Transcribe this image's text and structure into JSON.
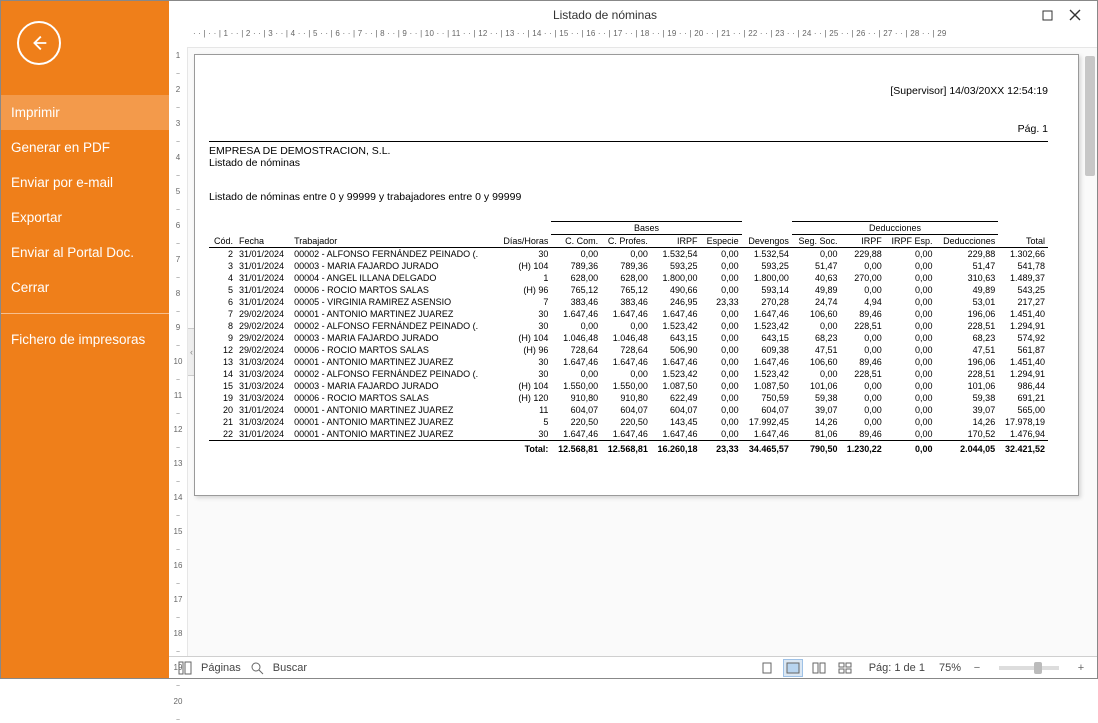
{
  "colors": {
    "accent": "#ef7f1a",
    "accent_light": "#f39a4b"
  },
  "window": {
    "title": "Listado de nóminas"
  },
  "sidebar": {
    "items": [
      {
        "label": "Imprimir",
        "active": true
      },
      {
        "label": "Generar en PDF"
      },
      {
        "label": "Enviar por e-mail"
      },
      {
        "label": "Exportar"
      },
      {
        "label": "Enviar al Portal Doc."
      },
      {
        "label": "Cerrar"
      },
      {
        "sep": true
      },
      {
        "label": "Fichero de impresoras"
      }
    ]
  },
  "ruler_h": [
    "1",
    "2",
    "3",
    "4",
    "5",
    "6",
    "7",
    "8",
    "9",
    "10",
    "11",
    "12",
    "13",
    "14",
    "15",
    "16",
    "17",
    "18",
    "19",
    "20",
    "21",
    "22",
    "23",
    "24",
    "25",
    "26",
    "27",
    "28",
    "29"
  ],
  "ruler_v": [
    "1",
    "2",
    "3",
    "4",
    "5",
    "6",
    "7",
    "8",
    "9",
    "10",
    "11",
    "12",
    "13",
    "14",
    "15",
    "16",
    "17",
    "18",
    "19",
    "20"
  ],
  "report": {
    "meta": "[Supervisor] 14/03/20XX 12:54:19",
    "company": "EMPRESA DE DEMOSTRACION, S.L.",
    "subtitle": "Listado de nóminas",
    "filter_line": "Listado de nóminas entre 0 y 99999 y trabajadores entre 0 y 99999",
    "page_label": "Pág. 1",
    "group_labels": {
      "bases": "Bases",
      "deducciones": "Deducciones"
    },
    "columns": [
      "Cód.",
      "Fecha",
      "Trabajador",
      "Días/Horas",
      "C. Com.",
      "C. Profes.",
      "IRPF",
      "Especie",
      "Devengos",
      "Seg. Soc.",
      "IRPF",
      "IRPF Esp.",
      "Deducciones",
      "Total"
    ],
    "rows": [
      [
        "2",
        "31/01/2024",
        "00002 - ALFONSO FERNÁNDEZ PEINADO (.",
        "30",
        "0,00",
        "0,00",
        "1.532,54",
        "0,00",
        "1.532,54",
        "0,00",
        "229,88",
        "0,00",
        "229,88",
        "1.302,66"
      ],
      [
        "3",
        "31/01/2024",
        "00003 - MARIA FAJARDO JURADO",
        "(H) 104",
        "789,36",
        "789,36",
        "593,25",
        "0,00",
        "593,25",
        "51,47",
        "0,00",
        "0,00",
        "51,47",
        "541,78"
      ],
      [
        "4",
        "31/01/2024",
        "00004 - ANGEL ILLANA DELGADO",
        "1",
        "628,00",
        "628,00",
        "1.800,00",
        "0,00",
        "1.800,00",
        "40,63",
        "270,00",
        "0,00",
        "310,63",
        "1.489,37"
      ],
      [
        "5",
        "31/01/2024",
        "00006 - ROCIO MARTOS SALAS",
        "(H) 96",
        "765,12",
        "765,12",
        "490,66",
        "0,00",
        "593,14",
        "49,89",
        "0,00",
        "0,00",
        "49,89",
        "543,25"
      ],
      [
        "6",
        "31/01/2024",
        "00005 - VIRGINIA RAMIREZ ASENSIO",
        "7",
        "383,46",
        "383,46",
        "246,95",
        "23,33",
        "270,28",
        "24,74",
        "4,94",
        "0,00",
        "53,01",
        "217,27"
      ],
      [
        "7",
        "29/02/2024",
        "00001 - ANTONIO MARTINEZ JUAREZ",
        "30",
        "1.647,46",
        "1.647,46",
        "1.647,46",
        "0,00",
        "1.647,46",
        "106,60",
        "89,46",
        "0,00",
        "196,06",
        "1.451,40"
      ],
      [
        "8",
        "29/02/2024",
        "00002 - ALFONSO FERNÁNDEZ PEINADO (.",
        "30",
        "0,00",
        "0,00",
        "1.523,42",
        "0,00",
        "1.523,42",
        "0,00",
        "228,51",
        "0,00",
        "228,51",
        "1.294,91"
      ],
      [
        "9",
        "29/02/2024",
        "00003 - MARIA FAJARDO JURADO",
        "(H) 104",
        "1.046,48",
        "1.046,48",
        "643,15",
        "0,00",
        "643,15",
        "68,23",
        "0,00",
        "0,00",
        "68,23",
        "574,92"
      ],
      [
        "12",
        "29/02/2024",
        "00006 - ROCIO MARTOS SALAS",
        "(H) 96",
        "728,64",
        "728,64",
        "506,90",
        "0,00",
        "609,38",
        "47,51",
        "0,00",
        "0,00",
        "47,51",
        "561,87"
      ],
      [
        "13",
        "31/03/2024",
        "00001 - ANTONIO MARTINEZ JUAREZ",
        "30",
        "1.647,46",
        "1.647,46",
        "1.647,46",
        "0,00",
        "1.647,46",
        "106,60",
        "89,46",
        "0,00",
        "196,06",
        "1.451,40"
      ],
      [
        "14",
        "31/03/2024",
        "00002 - ALFONSO FERNÁNDEZ PEINADO (.",
        "30",
        "0,00",
        "0,00",
        "1.523,42",
        "0,00",
        "1.523,42",
        "0,00",
        "228,51",
        "0,00",
        "228,51",
        "1.294,91"
      ],
      [
        "15",
        "31/03/2024",
        "00003 - MARIA FAJARDO JURADO",
        "(H) 104",
        "1.550,00",
        "1.550,00",
        "1.087,50",
        "0,00",
        "1.087,50",
        "101,06",
        "0,00",
        "0,00",
        "101,06",
        "986,44"
      ],
      [
        "19",
        "31/03/2024",
        "00006 - ROCIO MARTOS SALAS",
        "(H) 120",
        "910,80",
        "910,80",
        "622,49",
        "0,00",
        "750,59",
        "59,38",
        "0,00",
        "0,00",
        "59,38",
        "691,21"
      ],
      [
        "20",
        "31/01/2024",
        "00001 - ANTONIO MARTINEZ JUAREZ",
        "11",
        "604,07",
        "604,07",
        "604,07",
        "0,00",
        "604,07",
        "39,07",
        "0,00",
        "0,00",
        "39,07",
        "565,00"
      ],
      [
        "21",
        "31/03/2024",
        "00001 - ANTONIO MARTINEZ JUAREZ",
        "5",
        "220,50",
        "220,50",
        "143,45",
        "0,00",
        "17.992,45",
        "14,26",
        "0,00",
        "0,00",
        "14,26",
        "17.978,19"
      ],
      [
        "22",
        "31/01/2024",
        "00001 - ANTONIO MARTINEZ JUAREZ",
        "30",
        "1.647,46",
        "1.647,46",
        "1.647,46",
        "0,00",
        "1.647,46",
        "81,06",
        "89,46",
        "0,00",
        "170,52",
        "1.476,94"
      ]
    ],
    "total_label": "Total:",
    "totals": [
      "12.568,81",
      "12.568,81",
      "16.260,18",
      "23,33",
      "34.465,57",
      "790,50",
      "1.230,22",
      "0,00",
      "2.044,05",
      "32.421,52"
    ]
  },
  "status": {
    "paginas": "Páginas",
    "buscar": "Buscar",
    "page_of": "Pág: 1 de 1",
    "zoom": "75%"
  }
}
